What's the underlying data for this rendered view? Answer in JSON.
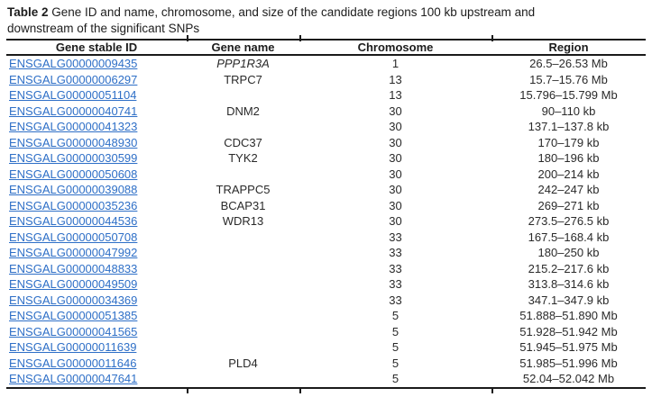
{
  "caption": {
    "label_bold": "Table 2",
    "text_line1": " Gene ID and name, chromosome, and size of the candidate regions 100 kb upstream and",
    "text_line2": "downstream of the significant SNPs"
  },
  "table": {
    "columns": [
      "Gene stable ID",
      "Gene name",
      "Chromosome",
      "Region"
    ],
    "link_color": "#2e6fc7",
    "border_color": "#1a1a1a",
    "rows": [
      {
        "id": "ENSGALG00000009435",
        "name": "PPP1R3A",
        "italic": true,
        "chromosome": "1",
        "region": "26.5–26.53 Mb"
      },
      {
        "id": "ENSGALG00000006297",
        "name": "TRPC7",
        "italic": false,
        "chromosome": "13",
        "region": "15.7–15.76 Mb"
      },
      {
        "id": "ENSGALG00000051104",
        "name": "",
        "italic": false,
        "chromosome": "13",
        "region": "15.796–15.799 Mb"
      },
      {
        "id": "ENSGALG00000040741",
        "name": "DNM2",
        "italic": false,
        "chromosome": "30",
        "region": "90–110 kb"
      },
      {
        "id": "ENSGALG00000041323",
        "name": "",
        "italic": false,
        "chromosome": "30",
        "region": "137.1–137.8 kb"
      },
      {
        "id": "ENSGALG00000048930",
        "name": "CDC37",
        "italic": false,
        "chromosome": "30",
        "region": "170–179 kb"
      },
      {
        "id": "ENSGALG00000030599",
        "name": "TYK2",
        "italic": false,
        "chromosome": "30",
        "region": "180–196 kb"
      },
      {
        "id": "ENSGALG00000050608",
        "name": "",
        "italic": false,
        "chromosome": "30",
        "region": "200–214 kb"
      },
      {
        "id": "ENSGALG00000039088",
        "name": "TRAPPC5",
        "italic": false,
        "chromosome": "30",
        "region": "242–247 kb"
      },
      {
        "id": "ENSGALG00000035236",
        "name": "BCAP31",
        "italic": false,
        "chromosome": "30",
        "region": "269–271 kb"
      },
      {
        "id": "ENSGALG00000044536",
        "name": "WDR13",
        "italic": false,
        "chromosome": "30",
        "region": "273.5–276.5 kb"
      },
      {
        "id": "ENSGALG00000050708",
        "name": "",
        "italic": false,
        "chromosome": "33",
        "region": "167.5–168.4 kb"
      },
      {
        "id": "ENSGALG00000047992",
        "name": "",
        "italic": false,
        "chromosome": "33",
        "region": "180–250 kb"
      },
      {
        "id": "ENSGALG00000048833",
        "name": "",
        "italic": false,
        "chromosome": "33",
        "region": "215.2–217.6 kb"
      },
      {
        "id": "ENSGALG00000049509",
        "name": "",
        "italic": false,
        "chromosome": "33",
        "region": "313.8–314.6 kb"
      },
      {
        "id": "ENSGALG00000034369",
        "name": "",
        "italic": false,
        "chromosome": "33",
        "region": "347.1–347.9 kb"
      },
      {
        "id": "ENSGALG00000051385",
        "name": "",
        "italic": false,
        "chromosome": "5",
        "region": "51.888–51.890 Mb"
      },
      {
        "id": "ENSGALG00000041565",
        "name": "",
        "italic": false,
        "chromosome": "5",
        "region": "51.928–51.942 Mb"
      },
      {
        "id": "ENSGALG00000011639",
        "name": "",
        "italic": false,
        "chromosome": "5",
        "region": "51.945–51.975 Mb"
      },
      {
        "id": "ENSGALG00000011646",
        "name": "PLD4",
        "italic": false,
        "chromosome": "5",
        "region": "51.985–51.996 Mb"
      },
      {
        "id": "ENSGALG00000047641",
        "name": "",
        "italic": false,
        "chromosome": "5",
        "region": "52.04–52.042 Mb"
      }
    ]
  }
}
